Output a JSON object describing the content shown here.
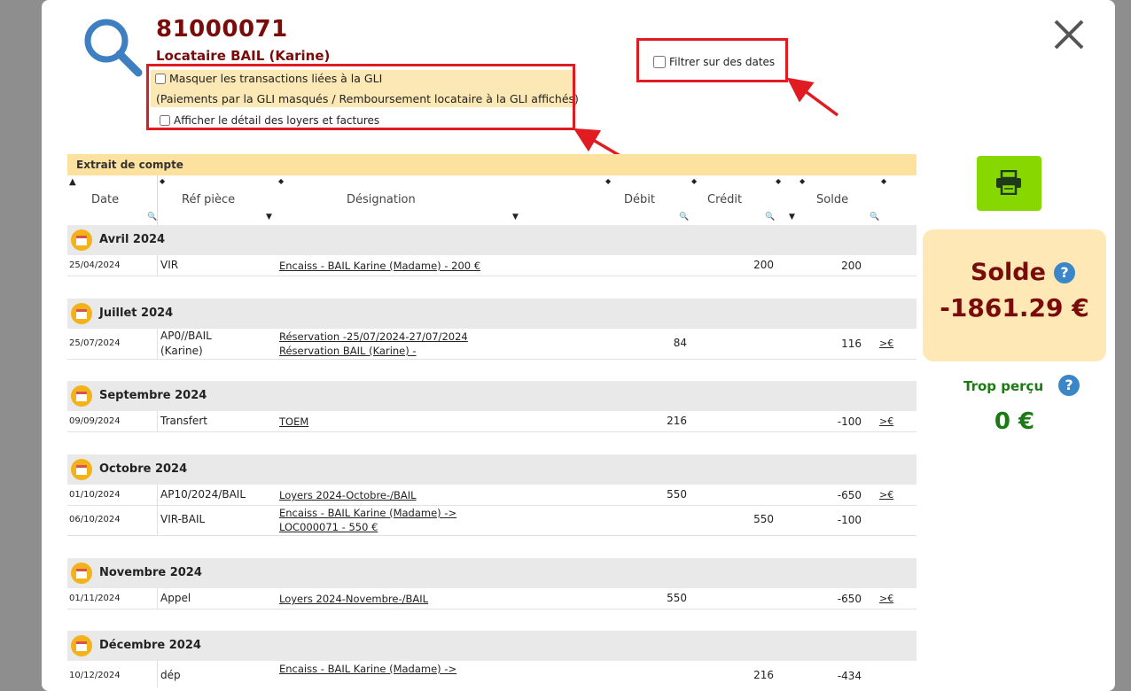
{
  "header": {
    "account_number": "81000071",
    "tenant": "Locataire BAIL (Karine)"
  },
  "options": {
    "mask_gli_label": "Masquer les transactions liées à la GLI",
    "mask_gli_note": "(Paiements par la GLI masqués / Remboursement locataire à la GLI affichés)",
    "show_detail_label": "Afficher le détail des loyers et factures",
    "date_filter_label": "Filtrer sur des dates"
  },
  "table": {
    "title": "Extrait de compte",
    "columns": [
      "Date",
      "Réf pièce",
      "Désignation",
      "Débit",
      "Crédit",
      "Solde"
    ],
    "months": [
      {
        "label": "Avril 2024",
        "rows": [
          {
            "date": "25/04/2024",
            "ref": "VIR",
            "designation": [
              "Encaiss - BAIL Karine (Madame) - 200 €"
            ],
            "debit": "",
            "credit": "200",
            "solde": "200",
            "action": ""
          }
        ]
      },
      {
        "label": "Juillet 2024",
        "rows": [
          {
            "date": "25/07/2024",
            "ref": "AP0//BAIL (Karine)",
            "designation": [
              "Réservation -25/07/2024-27/07/2024",
              "Réservation BAIL (Karine) -"
            ],
            "debit": "84",
            "credit": "",
            "solde": "116",
            "action": ">€"
          }
        ]
      },
      {
        "label": "Septembre 2024",
        "rows": [
          {
            "date": "09/09/2024",
            "ref": "Transfert",
            "designation": [
              "TOEM"
            ],
            "debit": "216",
            "credit": "",
            "solde": "-100",
            "action": ">€"
          }
        ]
      },
      {
        "label": "Octobre 2024",
        "rows": [
          {
            "date": "01/10/2024",
            "ref": "AP10/2024/BAIL",
            "designation": [
              "Loyers 2024-Octobre-/BAIL"
            ],
            "debit": "550",
            "credit": "",
            "solde": "-650",
            "action": ">€"
          },
          {
            "date": "06/10/2024",
            "ref": "VIR-BAIL",
            "designation": [
              "Encaiss - BAIL Karine (Madame) ->",
              "LOC000071 - 550 €"
            ],
            "debit": "",
            "credit": "550",
            "solde": "-100",
            "action": ""
          }
        ]
      },
      {
        "label": "Novembre 2024",
        "rows": [
          {
            "date": "01/11/2024",
            "ref": "Appel",
            "designation": [
              "Loyers 2024-Novembre-/BAIL"
            ],
            "debit": "550",
            "credit": "",
            "solde": "-650",
            "action": ">€"
          }
        ]
      },
      {
        "label": "Décembre 2024",
        "rows": [
          {
            "date": "10/12/2024",
            "ref": "dép",
            "designation": [
              "Encaiss - BAIL Karine (Madame) ->"
            ],
            "debit": "",
            "credit": "216",
            "solde": "-434",
            "action": ""
          }
        ]
      }
    ]
  },
  "summary": {
    "solde_label": "Solde",
    "solde_value": "-1861.29 €",
    "trop_percu_label": "Trop perçu",
    "trop_percu_value": "0 €",
    "help_glyph": "?"
  },
  "colors": {
    "accent_dark_red": "#7a0b0b",
    "highlight_red": "#e11b22",
    "print_green": "#86d800",
    "positive_green": "#1b7a14"
  }
}
